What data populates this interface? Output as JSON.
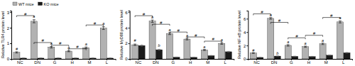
{
  "chart_data": [
    {
      "type": "bar",
      "ylabel": "Relative TLR4 protein level",
      "categories": [
        "NC",
        "DN",
        "G",
        "H",
        "M",
        "L"
      ],
      "series": [
        {
          "name": "WT mice",
          "color": "#b2b2b2",
          "values": [
            0.42,
            2.42,
            0.75,
            0.5,
            0.72,
            1.98
          ],
          "errors": [
            0.04,
            0.1,
            0.05,
            0.04,
            0.05,
            0.09
          ]
        },
        {
          "name": "KO mice",
          "color": "#1a1a1a",
          "values": [
            0.05,
            0.05,
            0.05,
            0.05,
            0.05,
            0.05
          ],
          "errors": [
            0.01,
            0.01,
            0.01,
            0.01,
            0.01,
            0.01
          ]
        }
      ],
      "ylim": [
        0,
        3.1
      ],
      "yticks": [
        0,
        1,
        2,
        3
      ],
      "legend": "upper left",
      "brackets": [
        {
          "x1": 0,
          "x2": 1,
          "y": 2.78,
          "text": "#",
          "series": "WT mice"
        },
        {
          "x1": 1,
          "x2": 2,
          "y": 1.05,
          "text": "#",
          "series": "WT mice"
        },
        {
          "x1": 2,
          "x2": 3,
          "y": 0.88,
          "text": "#",
          "series": "WT mice"
        },
        {
          "x1": 3,
          "x2": 4,
          "y": 0.65,
          "text": "#",
          "series": "WT mice"
        },
        {
          "x1": 4,
          "x2": 5,
          "y": 2.18,
          "text": "#",
          "series": "WT mice"
        }
      ],
      "annotations": [
        {
          "x": 1,
          "y": 2.62,
          "text": "a",
          "series": "WT mice"
        },
        {
          "x": 2,
          "y": 0.88,
          "text": "a",
          "series": "WT mice"
        },
        {
          "x": 3,
          "y": 0.62,
          "text": "a",
          "series": "WT mice"
        },
        {
          "x": 4,
          "y": 0.84,
          "text": "a",
          "series": "WT mice"
        },
        {
          "x": 5,
          "y": 2.18,
          "text": "a",
          "series": "WT mice"
        },
        {
          "x": 0,
          "y": 0.54,
          "text": "#",
          "series": "WT mice"
        }
      ]
    },
    {
      "type": "bar",
      "ylabel": "Relative MyD88 protein level",
      "categories": [
        "NC",
        "DN",
        "G",
        "H",
        "M",
        "L"
      ],
      "series": [
        {
          "name": "WT mice",
          "color": "#b2b2b2",
          "values": [
            1.82,
            4.85,
            3.25,
            2.55,
            1.15,
            1.98
          ],
          "errors": [
            0.09,
            0.15,
            0.13,
            0.11,
            0.07,
            0.1
          ]
        },
        {
          "name": "KO mice",
          "color": "#1a1a1a",
          "values": [
            1.72,
            1.18,
            0.22,
            0.2,
            0.42,
            0.92
          ],
          "errors": [
            0.08,
            0.06,
            0.02,
            0.02,
            0.03,
            0.05
          ]
        }
      ],
      "ylim": [
        0,
        6.2
      ],
      "yticks": [
        0,
        2,
        4,
        6
      ],
      "brackets": [
        {
          "x1": 0,
          "x2": 1,
          "y": 5.55,
          "text": "#",
          "series": "WT mice"
        },
        {
          "x1": 1,
          "x2": 2,
          "y": 4.45,
          "text": "#",
          "series": "WT mice"
        },
        {
          "x1": 2,
          "x2": 3,
          "y": 3.45,
          "text": "#",
          "series": "WT mice"
        },
        {
          "x1": 3,
          "x2": 4,
          "y": 2.82,
          "text": "#",
          "series": "WT mice"
        },
        {
          "x1": 4,
          "x2": 5,
          "y": 2.28,
          "text": "#",
          "series": "WT mice"
        }
      ],
      "annotations": [
        {
          "x": 0,
          "y": 2.15,
          "text": "#",
          "series": "WT mice"
        },
        {
          "x": 1,
          "y": 5.18,
          "text": "a",
          "series": "WT mice"
        },
        {
          "x": 2,
          "y": 3.55,
          "text": "a",
          "series": "WT mice"
        },
        {
          "x": 3,
          "y": 2.82,
          "text": "a",
          "series": "WT mice"
        },
        {
          "x": 4,
          "y": 1.38,
          "text": "a",
          "series": "WT mice"
        },
        {
          "x": 5,
          "y": 2.28,
          "text": "a",
          "series": "WT mice"
        },
        {
          "x": 1,
          "y": 1.48,
          "text": "b",
          "series": "KO mice"
        }
      ]
    },
    {
      "type": "bar",
      "ylabel": "Relative NF-κB protein level",
      "categories": [
        "NC",
        "DN",
        "G",
        "H",
        "M",
        "L"
      ],
      "series": [
        {
          "name": "WT mice",
          "color": "#b2b2b2",
          "values": [
            0.88,
            6.05,
            2.02,
            1.82,
            2.25,
            5.52
          ],
          "errors": [
            0.06,
            0.12,
            0.11,
            0.09,
            0.11,
            0.15
          ]
        },
        {
          "name": "KO mice",
          "color": "#1a1a1a",
          "values": [
            0.22,
            0.42,
            0.38,
            0.35,
            0.55,
            0.92
          ],
          "errors": [
            0.02,
            0.03,
            0.03,
            0.03,
            0.04,
            0.05
          ]
        }
      ],
      "ylim": [
        0,
        7.2
      ],
      "yticks": [
        0,
        2,
        4,
        6
      ],
      "brackets": [
        {
          "x1": 0,
          "x2": 1,
          "y": 6.72,
          "text": "#",
          "series": "WT mice"
        },
        {
          "x1": 1,
          "x2": 2,
          "y": 5.45,
          "text": "#",
          "series": "WT mice"
        },
        {
          "x1": 2,
          "x2": 3,
          "y": 3.15,
          "text": "#",
          "series": "WT mice"
        },
        {
          "x1": 3,
          "x2": 4,
          "y": 3.52,
          "text": "#",
          "series": "WT mice"
        },
        {
          "x1": 4,
          "x2": 5,
          "y": 6.18,
          "text": "#",
          "series": "WT mice"
        }
      ],
      "annotations": [
        {
          "x": 0,
          "y": 1.08,
          "text": "#",
          "series": "WT mice"
        },
        {
          "x": 1,
          "y": 6.35,
          "text": "a",
          "series": "WT mice"
        },
        {
          "x": 2,
          "y": 2.32,
          "text": "a",
          "series": "WT mice"
        },
        {
          "x": 3,
          "y": 2.12,
          "text": "a",
          "series": "WT mice"
        },
        {
          "x": 4,
          "y": 2.55,
          "text": "a",
          "series": "WT mice"
        },
        {
          "x": 5,
          "y": 5.88,
          "text": "a",
          "series": "WT mice"
        },
        {
          "x": 1,
          "y": 0.65,
          "text": "b",
          "series": "KO mice"
        }
      ]
    }
  ]
}
